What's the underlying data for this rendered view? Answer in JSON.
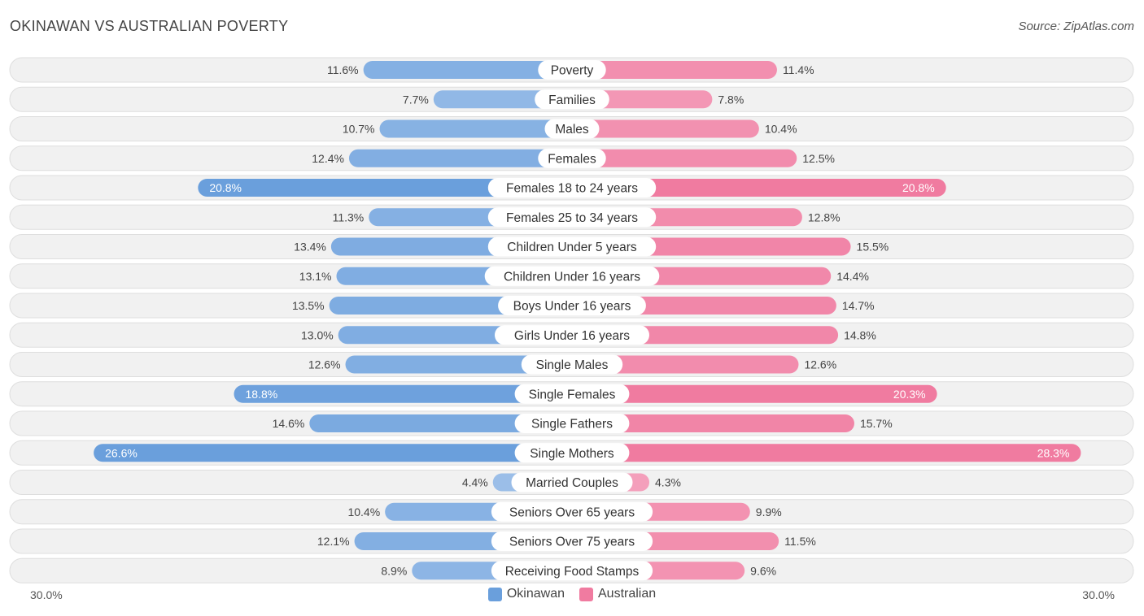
{
  "header": {
    "title": "OKINAWAN VS AUSTRALIAN POVERTY",
    "source": "Source: ZipAtlas.com"
  },
  "colors": {
    "left_strong": "#6a9fdc",
    "left_light": "#a9c7ec",
    "right_strong": "#f07ba0",
    "right_light": "#f5a9c2",
    "row_bg": "#f1f1f1",
    "row_border": "#dedede"
  },
  "chart_data": {
    "type": "bar",
    "orientation": "diverging-horizontal",
    "title": "OKINAWAN VS AUSTRALIAN POVERTY",
    "axis": {
      "left_label": "30.0%",
      "right_label": "30.0%",
      "max": 30.0
    },
    "legend": [
      {
        "name": "Okinawan",
        "color": "#6a9fdc"
      },
      {
        "name": "Australian",
        "color": "#f07ba0"
      }
    ],
    "categories": [
      "Poverty",
      "Families",
      "Males",
      "Females",
      "Females 18 to 24 years",
      "Females 25 to 34 years",
      "Children Under 5 years",
      "Children Under 16 years",
      "Boys Under 16 years",
      "Girls Under 16 years",
      "Single Males",
      "Single Females",
      "Single Fathers",
      "Single Mothers",
      "Married Couples",
      "Seniors Over 65 years",
      "Seniors Over 75 years",
      "Receiving Food Stamps"
    ],
    "series": [
      {
        "name": "Okinawan",
        "values": [
          11.6,
          7.7,
          10.7,
          12.4,
          20.8,
          11.3,
          13.4,
          13.1,
          13.5,
          13.0,
          12.6,
          18.8,
          14.6,
          26.6,
          4.4,
          10.4,
          12.1,
          8.9
        ],
        "labels": [
          "11.6%",
          "7.7%",
          "10.7%",
          "12.4%",
          "20.8%",
          "11.3%",
          "13.4%",
          "13.1%",
          "13.5%",
          "13.0%",
          "12.6%",
          "18.8%",
          "14.6%",
          "26.6%",
          "4.4%",
          "10.4%",
          "12.1%",
          "8.9%"
        ]
      },
      {
        "name": "Australian",
        "values": [
          11.4,
          7.8,
          10.4,
          12.5,
          20.8,
          12.8,
          15.5,
          14.4,
          14.7,
          14.8,
          12.6,
          20.3,
          15.7,
          28.3,
          4.3,
          9.9,
          11.5,
          9.6
        ],
        "labels": [
          "11.4%",
          "7.8%",
          "10.4%",
          "12.5%",
          "20.8%",
          "12.8%",
          "15.5%",
          "14.4%",
          "14.7%",
          "14.8%",
          "12.6%",
          "20.3%",
          "15.7%",
          "28.3%",
          "4.3%",
          "9.9%",
          "11.5%",
          "9.6%"
        ]
      }
    ]
  }
}
